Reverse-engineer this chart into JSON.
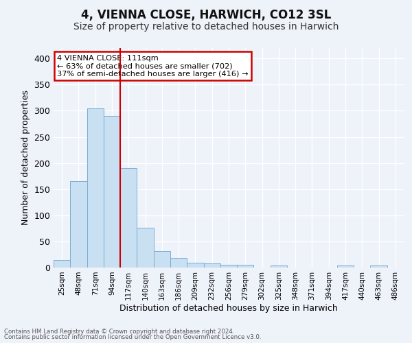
{
  "title": "4, VIENNA CLOSE, HARWICH, CO12 3SL",
  "subtitle": "Size of property relative to detached houses in Harwich",
  "xlabel": "Distribution of detached houses by size in Harwich",
  "ylabel": "Number of detached properties",
  "bar_color": "#c9dff2",
  "bar_edge_color": "#7aadd4",
  "categories": [
    "25sqm",
    "48sqm",
    "71sqm",
    "94sqm",
    "117sqm",
    "140sqm",
    "163sqm",
    "186sqm",
    "209sqm",
    "232sqm",
    "256sqm",
    "279sqm",
    "302sqm",
    "325sqm",
    "348sqm",
    "371sqm",
    "394sqm",
    "417sqm",
    "440sqm",
    "463sqm",
    "486sqm"
  ],
  "values": [
    15,
    165,
    305,
    290,
    190,
    76,
    32,
    19,
    9,
    8,
    5,
    5,
    0,
    4,
    0,
    0,
    0,
    4,
    0,
    4,
    0
  ],
  "redline_index": 4,
  "annotation_line1": "4 VIENNA CLOSE: 111sqm",
  "annotation_line2": "← 63% of detached houses are smaller (702)",
  "annotation_line3": "37% of semi-detached houses are larger (416) →",
  "annotation_box_color": "#ffffff",
  "annotation_box_edge": "#cc0000",
  "redline_color": "#cc0000",
  "ylim": [
    0,
    420
  ],
  "yticks": [
    0,
    50,
    100,
    150,
    200,
    250,
    300,
    350,
    400
  ],
  "footer1": "Contains HM Land Registry data © Crown copyright and database right 2024.",
  "footer2": "Contains public sector information licensed under the Open Government Licence v3.0.",
  "background_color": "#eef2f9",
  "grid_color": "#ffffff",
  "title_fontsize": 12,
  "subtitle_fontsize": 10,
  "ylabel_fontsize": 9,
  "xlabel_fontsize": 9
}
